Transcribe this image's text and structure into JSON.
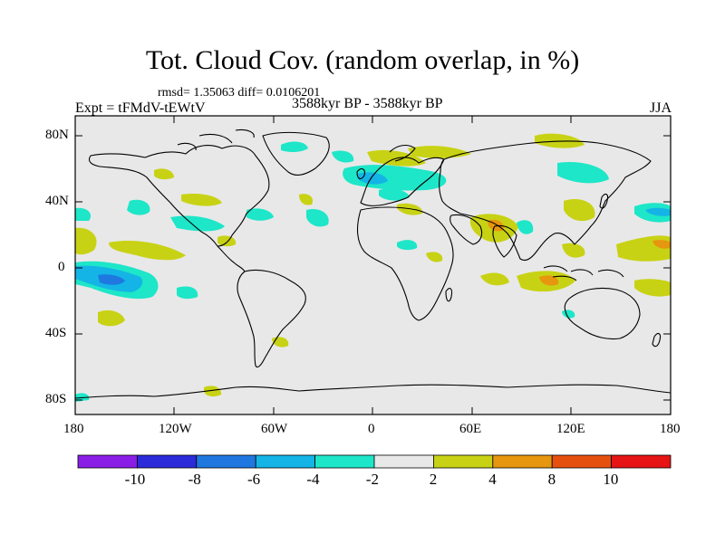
{
  "title": "Tot. Cloud Cov. (random overlap, in %)",
  "stats": "rmsd= 1.35063 diff= 0.0106201",
  "experiment": "Expt = tFMdV-tEWtV",
  "period": "3588kyr BP - 3588kyr BP",
  "season": "JJA",
  "axes": {
    "y_ticks": [
      "80N",
      "40N",
      "0",
      "40S",
      "80S"
    ],
    "x_ticks": [
      "180",
      "120W",
      "60W",
      "0",
      "60E",
      "120E",
      "180"
    ]
  },
  "colorbar": {
    "labels": [
      "-10",
      "-8",
      "-6",
      "-4",
      "-2",
      "2",
      "4",
      "8",
      "10"
    ],
    "colors": [
      "#8a1ee6",
      "#2b2bd9",
      "#1f78e0",
      "#14b4e6",
      "#1ee6c8",
      "#e8e8e8",
      "#c8d214",
      "#e6960f",
      "#e6500f",
      "#e61414"
    ]
  },
  "map": {
    "background": "#e8e8e8",
    "projection": "cylindrical equidistant",
    "lon_range": [
      -180,
      180
    ],
    "lat_range": [
      -90,
      90
    ]
  }
}
